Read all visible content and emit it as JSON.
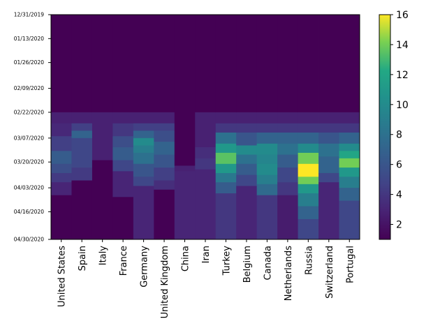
{
  "chart_data": {
    "type": "heatmap",
    "title": "",
    "xlabel": "",
    "ylabel": "",
    "colormap": "viridis",
    "colorbar": {
      "min": 1,
      "max": 16,
      "ticks": [
        2,
        4,
        6,
        8,
        10,
        12,
        14,
        16
      ]
    },
    "y_tick_labels": [
      "12/31/2019",
      "01/13/2020",
      "01/26/2020",
      "02/09/2020",
      "02/22/2020",
      "03/07/2020",
      "03/20/2020",
      "04/03/2020",
      "04/16/2020",
      "04/30/2020"
    ],
    "y_tick_rows": [
      0,
      13,
      26,
      40,
      53,
      67,
      80,
      94,
      107,
      121
    ],
    "n_rows": 122,
    "countries": [
      {
        "name": "United States",
        "segments": [
          [
            0,
            52,
            1
          ],
          [
            53,
            58,
            2.8
          ],
          [
            59,
            65,
            3.2
          ],
          [
            66,
            73,
            4.5
          ],
          [
            74,
            80,
            6.5
          ],
          [
            81,
            85,
            5.5
          ],
          [
            86,
            90,
            4.2
          ],
          [
            91,
            97,
            3
          ],
          [
            98,
            121,
            1
          ]
        ]
      },
      {
        "name": "Spain",
        "segments": [
          [
            0,
            52,
            1
          ],
          [
            53,
            58,
            2.8
          ],
          [
            59,
            62,
            4.5
          ],
          [
            63,
            66,
            7
          ],
          [
            67,
            82,
            5
          ],
          [
            83,
            89,
            4.2
          ],
          [
            90,
            121,
            1
          ]
        ]
      },
      {
        "name": "Italy",
        "segments": [
          [
            0,
            52,
            1
          ],
          [
            53,
            78,
            2.8
          ],
          [
            79,
            121,
            1
          ]
        ]
      },
      {
        "name": "France",
        "segments": [
          [
            0,
            52,
            1
          ],
          [
            53,
            58,
            2.8
          ],
          [
            59,
            65,
            4
          ],
          [
            66,
            71,
            5.5
          ],
          [
            72,
            78,
            6.5
          ],
          [
            79,
            84,
            5
          ],
          [
            85,
            98,
            3
          ],
          [
            99,
            121,
            1
          ]
        ]
      },
      {
        "name": "Germany",
        "segments": [
          [
            0,
            52,
            1
          ],
          [
            53,
            58,
            2.8
          ],
          [
            59,
            62,
            4.5
          ],
          [
            63,
            66,
            7
          ],
          [
            67,
            70,
            10
          ],
          [
            71,
            74,
            9
          ],
          [
            75,
            80,
            8
          ],
          [
            81,
            87,
            6
          ],
          [
            88,
            92,
            5
          ],
          [
            93,
            121,
            3
          ]
        ]
      },
      {
        "name": "United Kingdom",
        "segments": [
          [
            0,
            52,
            1
          ],
          [
            53,
            58,
            2.8
          ],
          [
            59,
            62,
            4.5
          ],
          [
            63,
            68,
            5.5
          ],
          [
            69,
            75,
            7
          ],
          [
            76,
            82,
            6
          ],
          [
            83,
            89,
            4.5
          ],
          [
            90,
            94,
            3.5
          ],
          [
            95,
            121,
            1
          ]
        ]
      },
      {
        "name": "China",
        "segments": [
          [
            0,
            81,
            1
          ],
          [
            82,
            84,
            2.8
          ],
          [
            85,
            121,
            3
          ]
        ]
      },
      {
        "name": "Iran",
        "segments": [
          [
            0,
            52,
            1
          ],
          [
            53,
            71,
            2.8
          ],
          [
            72,
            77,
            3.5
          ],
          [
            78,
            83,
            4
          ],
          [
            84,
            121,
            3
          ]
        ]
      },
      {
        "name": "Turkey",
        "segments": [
          [
            0,
            52,
            1
          ],
          [
            53,
            58,
            2.8
          ],
          [
            59,
            63,
            4
          ],
          [
            64,
            69,
            8
          ],
          [
            70,
            74,
            11
          ],
          [
            75,
            80,
            13.5
          ],
          [
            81,
            85,
            11
          ],
          [
            86,
            90,
            8.5
          ],
          [
            91,
            96,
            6.5
          ],
          [
            97,
            121,
            4
          ]
        ]
      },
      {
        "name": "Belgium",
        "segments": [
          [
            0,
            52,
            1
          ],
          [
            53,
            58,
            2.8
          ],
          [
            59,
            63,
            4
          ],
          [
            64,
            70,
            6
          ],
          [
            71,
            75,
            10
          ],
          [
            76,
            80,
            8
          ],
          [
            81,
            86,
            6.5
          ],
          [
            87,
            92,
            5
          ],
          [
            93,
            121,
            3
          ]
        ]
      },
      {
        "name": "Canada",
        "segments": [
          [
            0,
            52,
            1
          ],
          [
            53,
            58,
            2.8
          ],
          [
            59,
            63,
            4
          ],
          [
            64,
            69,
            7
          ],
          [
            70,
            75,
            10
          ],
          [
            76,
            80,
            9.5
          ],
          [
            81,
            86,
            10
          ],
          [
            87,
            91,
            9
          ],
          [
            92,
            97,
            7.5
          ],
          [
            98,
            121,
            4
          ]
        ]
      },
      {
        "name": "Netherlands",
        "segments": [
          [
            0,
            52,
            1
          ],
          [
            53,
            58,
            2.8
          ],
          [
            59,
            63,
            4
          ],
          [
            64,
            69,
            7
          ],
          [
            70,
            75,
            8
          ],
          [
            76,
            82,
            6.5
          ],
          [
            83,
            90,
            5
          ],
          [
            91,
            97,
            4
          ],
          [
            98,
            121,
            2.5
          ]
        ]
      },
      {
        "name": "Russia",
        "segments": [
          [
            0,
            52,
            1
          ],
          [
            53,
            58,
            2.8
          ],
          [
            59,
            63,
            4
          ],
          [
            64,
            69,
            7
          ],
          [
            70,
            74,
            10
          ],
          [
            75,
            80,
            14
          ],
          [
            81,
            87,
            16
          ],
          [
            88,
            91,
            14
          ],
          [
            92,
            96,
            11
          ],
          [
            97,
            103,
            9
          ],
          [
            104,
            110,
            7
          ],
          [
            111,
            121,
            5
          ]
        ]
      },
      {
        "name": "Switzerland",
        "segments": [
          [
            0,
            52,
            1
          ],
          [
            53,
            58,
            2.8
          ],
          [
            59,
            63,
            4
          ],
          [
            64,
            69,
            6
          ],
          [
            70,
            76,
            8
          ],
          [
            77,
            85,
            7
          ],
          [
            86,
            90,
            5
          ],
          [
            91,
            121,
            3
          ]
        ]
      },
      {
        "name": "Portugal",
        "segments": [
          [
            0,
            52,
            1
          ],
          [
            53,
            58,
            2.8
          ],
          [
            59,
            63,
            4
          ],
          [
            64,
            69,
            7
          ],
          [
            70,
            73,
            10
          ],
          [
            74,
            77,
            12
          ],
          [
            78,
            82,
            14
          ],
          [
            83,
            87,
            11
          ],
          [
            88,
            93,
            9
          ],
          [
            94,
            100,
            7
          ],
          [
            101,
            121,
            5
          ]
        ]
      }
    ]
  }
}
